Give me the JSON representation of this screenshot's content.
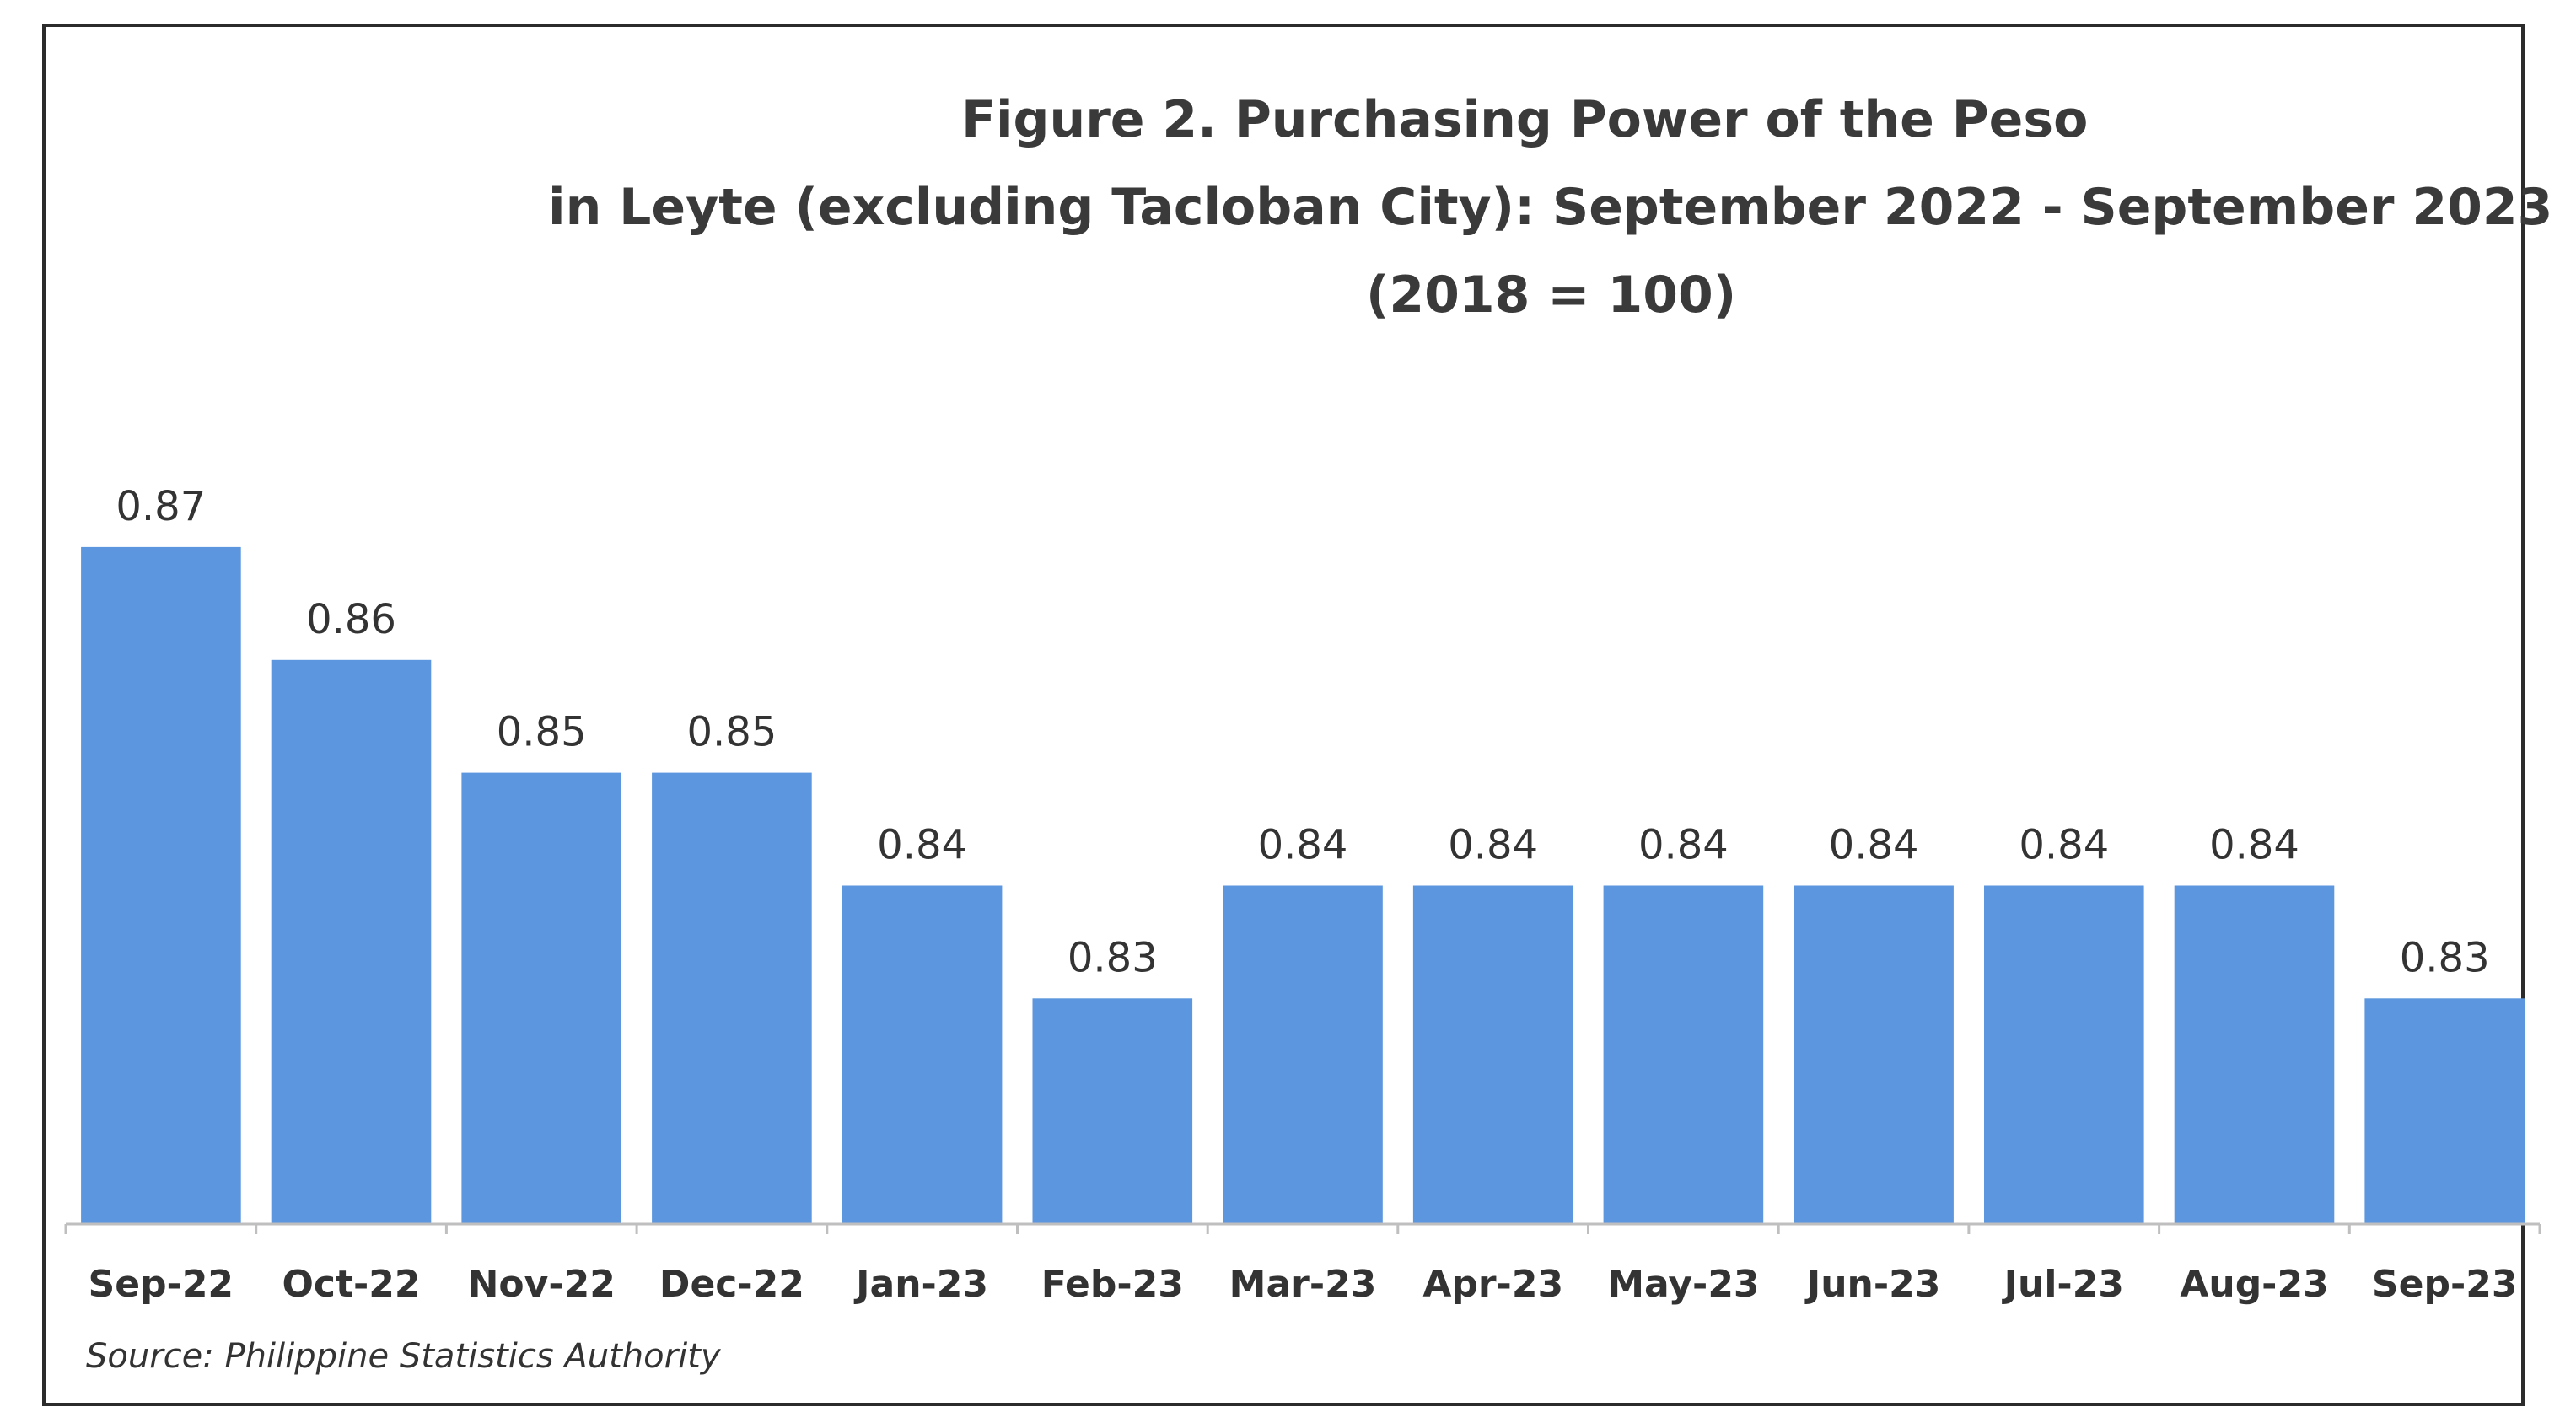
{
  "chart_data": {
    "type": "bar",
    "title": "Figure 2. Purchasing Power of the Peso",
    "title_line2": "in Leyte (excluding Tacloban City): September 2022 - September 2023",
    "title_line3": "(2018 = 100)",
    "categories": [
      "Sep-22",
      "Oct-22",
      "Nov-22",
      "Dec-22",
      "Jan-23",
      "Feb-23",
      "Mar-23",
      "Apr-23",
      "May-23",
      "Jun-23",
      "Jul-23",
      "Aug-23",
      "Sep-23"
    ],
    "values": [
      0.87,
      0.86,
      0.85,
      0.85,
      0.84,
      0.83,
      0.84,
      0.84,
      0.84,
      0.84,
      0.84,
      0.84,
      0.83
    ],
    "xlabel": "",
    "ylabel": "",
    "ylim": [
      0.81,
      0.875
    ],
    "grid": false,
    "legend": "none",
    "bar_color": "#5b96de",
    "source": "Source: Philippine Statistics Authority"
  }
}
